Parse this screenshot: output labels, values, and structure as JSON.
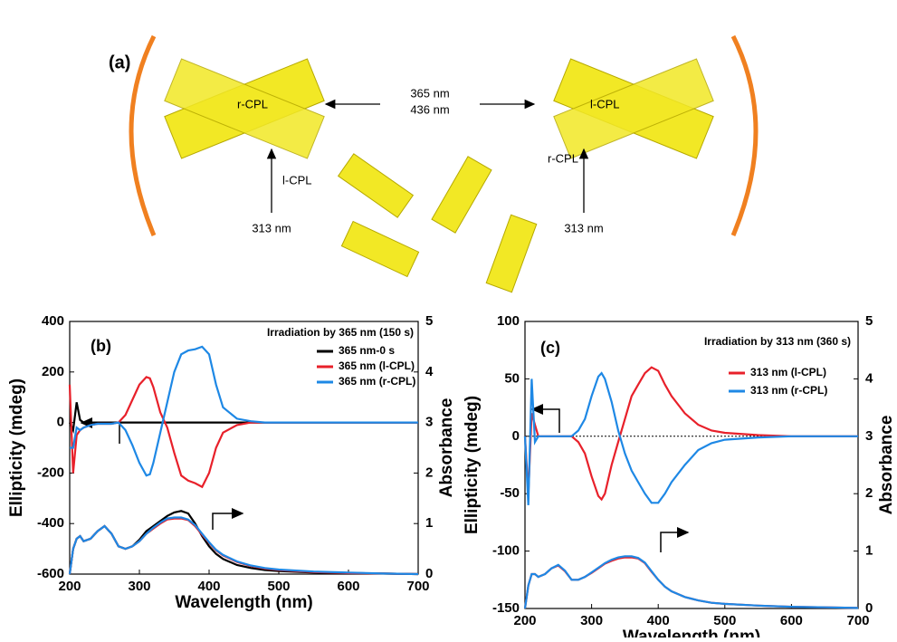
{
  "diagram": {
    "label": "(a)",
    "top_left": "r-CPL",
    "wl_top": "365 nm",
    "wl_bottom": "436 nm",
    "top_right": "l-CPL",
    "left_cpl": "l-CPL",
    "left_wl": "313 nm",
    "right_cpl": "r-CPL",
    "right_wl": "313 nm"
  },
  "chart_data": [
    {
      "type": "line",
      "panel_label": "(b)",
      "title": "Irradiation by 365 nm (150 s)",
      "x_label": "Wavelength (nm)",
      "y_label": "Ellipticity (mdeg)",
      "y2_label": "Absorbance",
      "xlim": [
        200,
        700
      ],
      "xticks": [
        200,
        300,
        400,
        500,
        600,
        700
      ],
      "ylim": [
        -600,
        400
      ],
      "yticks": [
        -600,
        -400,
        -200,
        0,
        200,
        400
      ],
      "y2lim": [
        0,
        5
      ],
      "y2ticks": [
        0,
        1,
        2,
        3,
        4,
        5
      ],
      "x": [
        200,
        205,
        210,
        215,
        220,
        230,
        240,
        250,
        260,
        270,
        280,
        290,
        300,
        310,
        315,
        320,
        330,
        340,
        350,
        360,
        370,
        380,
        390,
        400,
        410,
        420,
        440,
        460,
        480,
        500,
        550,
        600,
        650,
        700
      ],
      "series": [
        {
          "name": "365 nm-0 s",
          "color": "#000000",
          "values": [
            0,
            -30,
            80,
            10,
            0,
            0,
            0,
            0,
            0,
            0,
            0,
            0,
            0,
            0,
            0,
            0,
            0,
            0,
            0,
            0,
            0,
            0,
            0,
            0,
            0,
            0,
            0,
            0,
            0,
            0,
            0,
            0,
            0,
            0
          ],
          "y2_values": [
            0,
            0.5,
            0.7,
            0.75,
            0.65,
            0.7,
            0.85,
            0.95,
            0.8,
            0.55,
            0.5,
            0.55,
            0.68,
            0.85,
            0.9,
            0.95,
            1.05,
            1.15,
            1.22,
            1.25,
            1.2,
            1.0,
            0.75,
            0.55,
            0.4,
            0.3,
            0.18,
            0.12,
            0.08,
            0.06,
            0.03,
            0.02,
            0.01,
            0
          ]
        },
        {
          "name": "365 nm (l-CPL)",
          "color": "#e8202a",
          "values": [
            150,
            -200,
            -50,
            -30,
            -20,
            -10,
            -5,
            -5,
            -5,
            0,
            30,
            90,
            150,
            180,
            175,
            140,
            40,
            -20,
            -120,
            -210,
            -230,
            -240,
            -255,
            -200,
            -100,
            -40,
            -10,
            0,
            0,
            0,
            0,
            0,
            0,
            0
          ],
          "y2_values": [
            0,
            0.5,
            0.7,
            0.75,
            0.65,
            0.7,
            0.85,
            0.95,
            0.8,
            0.55,
            0.5,
            0.55,
            0.65,
            0.8,
            0.85,
            0.9,
            1.0,
            1.08,
            1.1,
            1.1,
            1.07,
            0.95,
            0.78,
            0.62,
            0.47,
            0.37,
            0.24,
            0.16,
            0.11,
            0.08,
            0.04,
            0.02,
            0.01,
            0
          ]
        },
        {
          "name": "365 nm (r-CPL)",
          "color": "#1e88e5",
          "values": [
            -100,
            -100,
            -20,
            -30,
            -20,
            -10,
            -5,
            -5,
            -5,
            0,
            -30,
            -90,
            -160,
            -210,
            -205,
            -160,
            -40,
            80,
            200,
            270,
            285,
            290,
            300,
            270,
            150,
            60,
            15,
            5,
            0,
            0,
            0,
            0,
            0,
            0
          ],
          "y2_values": [
            0,
            0.5,
            0.7,
            0.75,
            0.65,
            0.7,
            0.85,
            0.95,
            0.8,
            0.55,
            0.5,
            0.55,
            0.65,
            0.8,
            0.86,
            0.92,
            1.02,
            1.1,
            1.12,
            1.12,
            1.08,
            0.97,
            0.8,
            0.63,
            0.48,
            0.38,
            0.25,
            0.17,
            0.12,
            0.09,
            0.05,
            0.03,
            0.01,
            0
          ]
        }
      ]
    },
    {
      "type": "line",
      "panel_label": "(c)",
      "title": "Irradiation by 313 nm (360 s)",
      "x_label": "Wavelength (nm)",
      "y_label": "Ellipticity (mdeg)",
      "y2_label": "Absorbance",
      "xlim": [
        200,
        700
      ],
      "xticks": [
        200,
        300,
        400,
        500,
        600,
        700
      ],
      "ylim": [
        -150,
        100
      ],
      "yticks": [
        -150,
        -100,
        -50,
        0,
        50,
        100
      ],
      "y2lim": [
        0,
        5
      ],
      "y2ticks": [
        0,
        1,
        2,
        3,
        4,
        5
      ],
      "x": [
        200,
        205,
        210,
        215,
        220,
        230,
        240,
        250,
        260,
        270,
        280,
        290,
        300,
        310,
        315,
        320,
        330,
        340,
        350,
        360,
        370,
        380,
        390,
        400,
        410,
        420,
        440,
        460,
        480,
        500,
        550,
        600,
        650,
        700
      ],
      "series": [
        {
          "name": "313 nm (l-CPL)",
          "color": "#e8202a",
          "values": [
            0,
            -50,
            20,
            10,
            0,
            0,
            0,
            0,
            0,
            0,
            -5,
            -15,
            -35,
            -52,
            -55,
            -50,
            -25,
            -5,
            15,
            35,
            45,
            55,
            60,
            57,
            45,
            35,
            20,
            10,
            5,
            3,
            1,
            0,
            0,
            0
          ],
          "y2_values": [
            0,
            0.4,
            0.6,
            0.6,
            0.55,
            0.6,
            0.7,
            0.75,
            0.65,
            0.5,
            0.5,
            0.55,
            0.62,
            0.7,
            0.74,
            0.78,
            0.83,
            0.87,
            0.89,
            0.89,
            0.87,
            0.79,
            0.64,
            0.5,
            0.38,
            0.3,
            0.2,
            0.14,
            0.1,
            0.08,
            0.05,
            0.03,
            0.02,
            0.01
          ]
        },
        {
          "name": "313 nm (r-CPL)",
          "color": "#1e88e5",
          "values": [
            0,
            -60,
            50,
            -5,
            0,
            0,
            0,
            0,
            0,
            0,
            5,
            15,
            35,
            52,
            55,
            50,
            30,
            5,
            -15,
            -30,
            -40,
            -50,
            -58,
            -58,
            -50,
            -40,
            -25,
            -12,
            -6,
            -3,
            -1,
            0,
            0,
            0
          ],
          "y2_values": [
            0,
            0.4,
            0.6,
            0.6,
            0.55,
            0.6,
            0.7,
            0.76,
            0.66,
            0.5,
            0.5,
            0.55,
            0.63,
            0.71,
            0.75,
            0.79,
            0.85,
            0.89,
            0.91,
            0.91,
            0.88,
            0.8,
            0.65,
            0.5,
            0.38,
            0.3,
            0.2,
            0.14,
            0.1,
            0.08,
            0.05,
            0.03,
            0.02,
            0.01
          ]
        }
      ]
    }
  ]
}
